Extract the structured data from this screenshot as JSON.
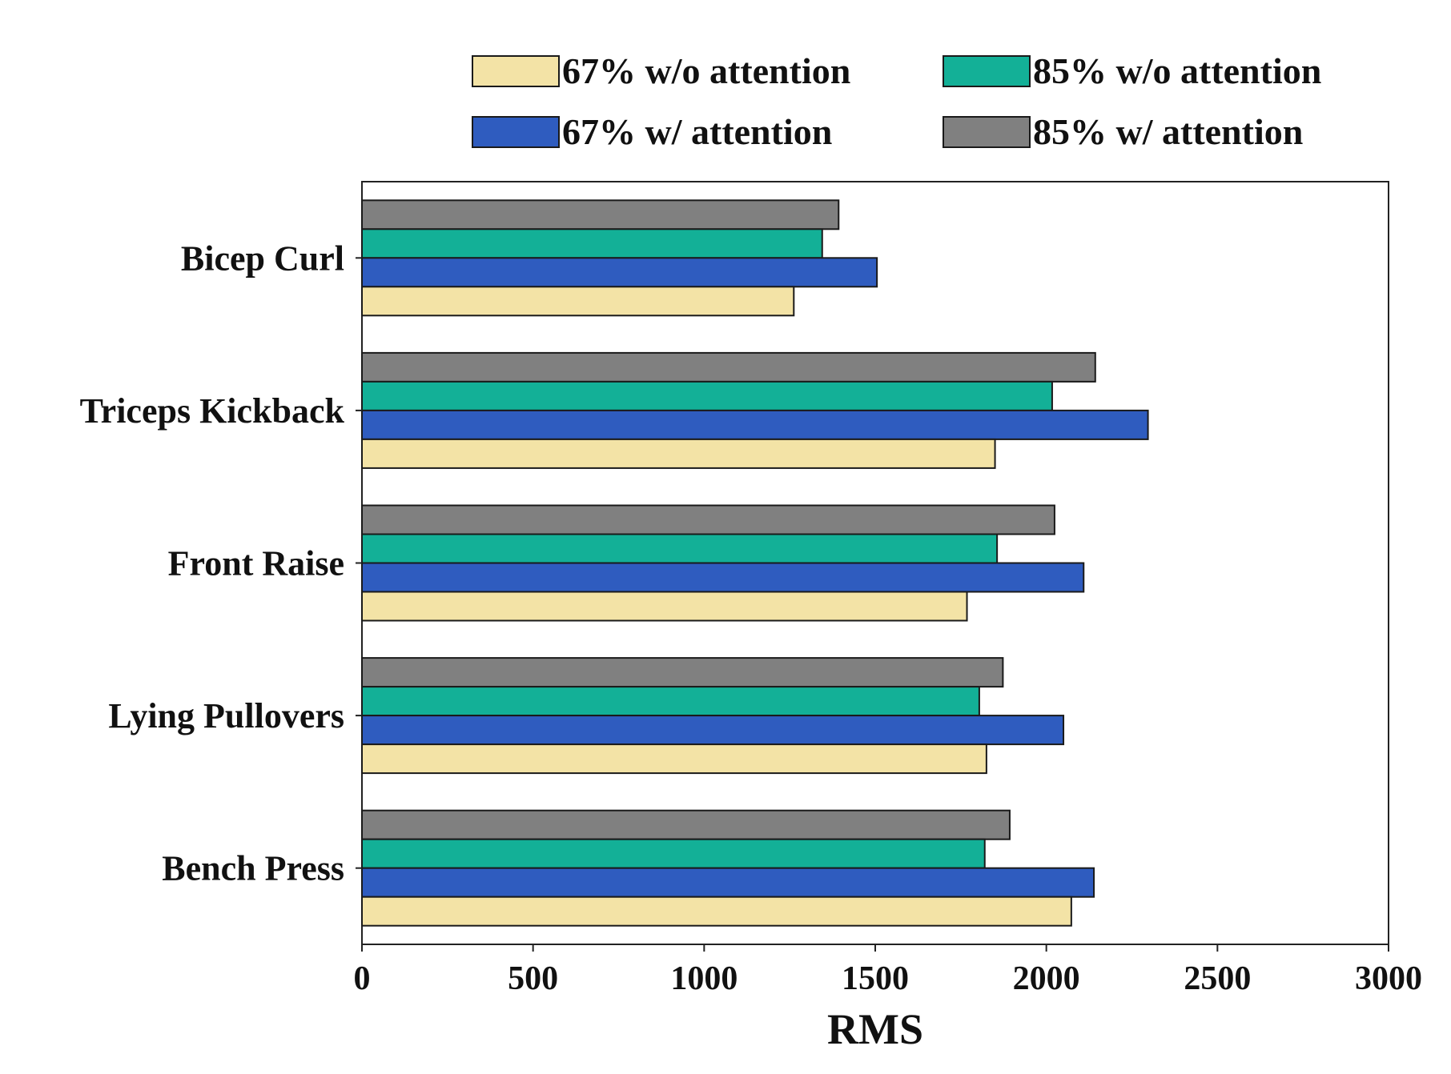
{
  "chart_data": {
    "type": "bar",
    "orientation": "horizontal",
    "title": "",
    "xlabel": "RMS",
    "ylabel": "",
    "xlim": [
      0,
      3000
    ],
    "xticks": [
      0,
      500,
      1000,
      1500,
      2000,
      2500,
      3000
    ],
    "grid": false,
    "legend_position": "top",
    "categories": [
      "Bicep Curl",
      "Triceps Kickback",
      "Front Raise",
      "Lying Pullovers",
      "Bench Press"
    ],
    "series": [
      {
        "name": "67% w/o attention",
        "color": "#f3e3a6",
        "values": [
          1262,
          1850,
          1768,
          1825,
          2073
        ]
      },
      {
        "name": "67% w/ attention",
        "color": "#2f5cbf",
        "values": [
          1505,
          2297,
          2109,
          2050,
          2139
        ]
      },
      {
        "name": "85% w/o attention",
        "color": "#13b097",
        "values": [
          1345,
          2017,
          1856,
          1804,
          1820
        ]
      },
      {
        "name": "85% w/ attention",
        "color": "#808080",
        "values": [
          1393,
          2143,
          2024,
          1873,
          1893
        ]
      }
    ],
    "legend_order": [
      "67% w/o attention",
      "85% w/o attention",
      "67% w/ attention",
      "85% w/ attention"
    ]
  }
}
